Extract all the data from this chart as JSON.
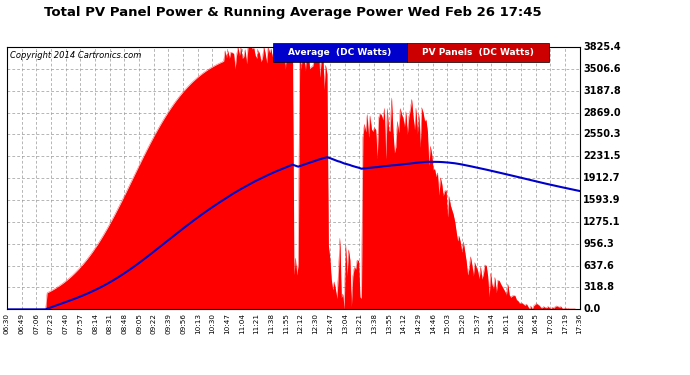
{
  "title": "Total PV Panel Power & Running Average Power Wed Feb 26 17:45",
  "copyright": "Copyright 2014 Cartronics.com",
  "legend_labels": [
    "Average  (DC Watts)",
    "PV Panels  (DC Watts)"
  ],
  "yticks": [
    0.0,
    318.8,
    637.6,
    956.3,
    1275.1,
    1593.9,
    1912.7,
    2231.5,
    2550.3,
    2869.0,
    3187.8,
    3506.6,
    3825.4
  ],
  "bg_color": "#ffffff",
  "grid_color": "#999999",
  "fill_color": "#ff0000",
  "avg_color": "#0000cc",
  "legend_avg_bg": "#0000cc",
  "legend_pv_bg": "#cc0000",
  "ymax": 3825.4,
  "ymin": 0.0,
  "xtick_labels": [
    "06:30",
    "06:49",
    "07:06",
    "07:23",
    "07:40",
    "07:57",
    "08:14",
    "08:31",
    "08:48",
    "09:05",
    "09:22",
    "09:39",
    "09:56",
    "10:13",
    "10:30",
    "10:47",
    "11:04",
    "11:21",
    "11:38",
    "11:55",
    "12:12",
    "12:30",
    "12:47",
    "13:04",
    "13:21",
    "13:38",
    "13:55",
    "14:12",
    "14:29",
    "14:46",
    "15:03",
    "15:20",
    "15:37",
    "15:54",
    "16:11",
    "16:28",
    "16:45",
    "17:02",
    "17:19",
    "17:36"
  ]
}
